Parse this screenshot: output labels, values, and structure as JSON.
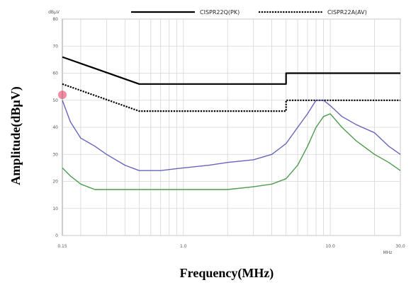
{
  "chart_data": {
    "type": "line",
    "xlabel": "Frequency(MHz)",
    "ylabel": "Amplitude(dBµV)",
    "y_unit": "dBµV",
    "x_unit": "MHz",
    "x_scale": "log",
    "xlim": [
      0.15,
      30
    ],
    "ylim": [
      0,
      80
    ],
    "x_ticks": [
      {
        "value": 0.15,
        "label": "0.15"
      },
      {
        "value": 1,
        "label": "1.0"
      },
      {
        "value": 10,
        "label": "10.0"
      },
      {
        "value": 30,
        "label": "30.0"
      }
    ],
    "y_ticks": [
      0,
      10,
      20,
      30,
      40,
      50,
      60,
      70,
      80
    ],
    "grid": true,
    "legend_position": "top",
    "series": [
      {
        "name": "CISPR22Q(PK)",
        "style": "solid",
        "color": "#000000",
        "x": [
          0.15,
          0.5,
          5,
          5,
          30
        ],
        "y": [
          66,
          56,
          56,
          60,
          60
        ]
      },
      {
        "name": "CISPR22A(AV)",
        "style": "dotted",
        "color": "#000000",
        "x": [
          0.15,
          0.5,
          5,
          5,
          30
        ],
        "y": [
          56,
          46,
          46,
          50,
          50
        ]
      },
      {
        "name": "",
        "style": "solid",
        "color": "#4a4ab0",
        "x": [
          0.15,
          0.17,
          0.2,
          0.25,
          0.3,
          0.4,
          0.5,
          0.7,
          1,
          1.5,
          2,
          3,
          4,
          5,
          6,
          7,
          8,
          9,
          10,
          12,
          15,
          20,
          25,
          30
        ],
        "y": [
          50,
          42,
          36,
          33,
          30,
          26,
          24,
          24,
          25,
          26,
          27,
          28,
          30,
          34,
          40,
          45,
          50,
          50,
          48,
          44,
          41,
          38,
          33,
          30
        ]
      },
      {
        "name": "",
        "style": "solid",
        "color": "#2e8b2e",
        "x": [
          0.15,
          0.17,
          0.2,
          0.25,
          0.3,
          0.4,
          0.5,
          0.7,
          1,
          1.5,
          2,
          3,
          4,
          5,
          6,
          7,
          8,
          9,
          10,
          12,
          15,
          20,
          25,
          30
        ],
        "y": [
          25,
          22,
          19,
          17,
          17,
          17,
          17,
          17,
          17,
          17,
          17,
          18,
          19,
          21,
          26,
          33,
          40,
          44,
          45,
          40,
          35,
          30,
          27,
          24
        ]
      }
    ]
  },
  "colors": {
    "peak_trace": "#4a4ab0",
    "avg_trace": "#2e8b2e",
    "limit_line": "#000000",
    "grid": "#d6d6d6",
    "marker": "#e0305a"
  }
}
